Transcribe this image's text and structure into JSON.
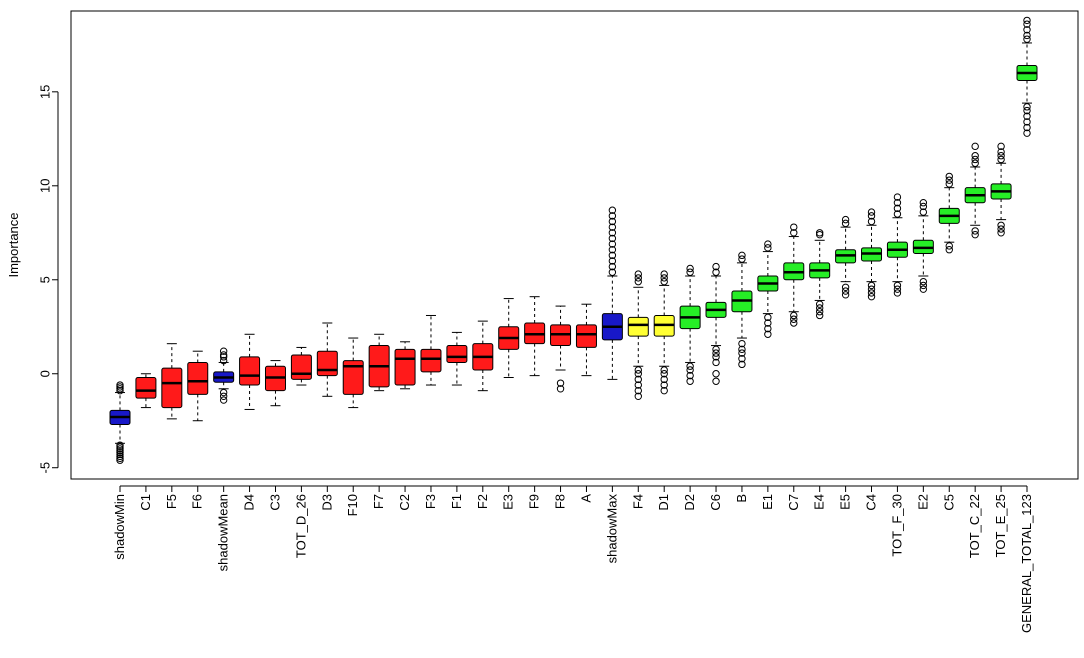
{
  "chart_data": {
    "type": "box",
    "ylabel": "Importance",
    "xlabel": "",
    "title": "",
    "ylim": [
      -5.6,
      19.3
    ],
    "yticks": [
      -5,
      0,
      5,
      10,
      15
    ],
    "ytick_labels": [
      "-5",
      "0",
      "5",
      "10",
      "15"
    ],
    "colors": {
      "blue": "#1818c8",
      "red": "#ff1a1a",
      "yellow": "#ffff33",
      "green": "#26ee26"
    },
    "boxes": [
      {
        "label": "shadowMin",
        "color": "blue",
        "whisker_low": -3.7,
        "q1": -2.7,
        "median": -2.3,
        "q3": -1.95,
        "whisker_high": -1.0,
        "outliers": [
          -4.6,
          -4.5,
          -4.4,
          -4.3,
          -4.2,
          -4.1,
          -4.0,
          -3.9,
          -3.8,
          -0.9,
          -0.8,
          -0.7,
          -0.6
        ]
      },
      {
        "label": "C1",
        "color": "red",
        "whisker_low": -1.8,
        "q1": -1.3,
        "median": -0.9,
        "q3": -0.2,
        "whisker_high": 0.0,
        "outliers": []
      },
      {
        "label": "F5",
        "color": "red",
        "whisker_low": -2.4,
        "q1": -1.8,
        "median": -0.5,
        "q3": 0.3,
        "whisker_high": 1.6,
        "outliers": []
      },
      {
        "label": "F6",
        "color": "red",
        "whisker_low": -2.5,
        "q1": -1.1,
        "median": -0.4,
        "q3": 0.6,
        "whisker_high": 1.2,
        "outliers": []
      },
      {
        "label": "shadowMean",
        "color": "blue",
        "whisker_low": -0.8,
        "q1": -0.45,
        "median": -0.2,
        "q3": 0.1,
        "whisker_high": 0.6,
        "outliers": [
          -1.4,
          -1.2,
          -1.0,
          0.7,
          0.9,
          1.0,
          1.2
        ]
      },
      {
        "label": "D4",
        "color": "red",
        "whisker_low": -1.9,
        "q1": -0.6,
        "median": -0.1,
        "q3": 0.9,
        "whisker_high": 2.1,
        "outliers": []
      },
      {
        "label": "C3",
        "color": "red",
        "whisker_low": -1.7,
        "q1": -0.9,
        "median": -0.2,
        "q3": 0.4,
        "whisker_high": 0.7,
        "outliers": []
      },
      {
        "label": "TOT_D_26",
        "color": "red",
        "whisker_low": -0.6,
        "q1": -0.3,
        "median": 0.0,
        "q3": 1.0,
        "whisker_high": 1.4,
        "outliers": []
      },
      {
        "label": "D3",
        "color": "red",
        "whisker_low": -1.2,
        "q1": -0.1,
        "median": 0.2,
        "q3": 1.2,
        "whisker_high": 2.7,
        "outliers": []
      },
      {
        "label": "F10",
        "color": "red",
        "whisker_low": -1.8,
        "q1": -1.1,
        "median": 0.4,
        "q3": 0.7,
        "whisker_high": 1.9,
        "outliers": []
      },
      {
        "label": "F7",
        "color": "red",
        "whisker_low": -0.9,
        "q1": -0.7,
        "median": 0.4,
        "q3": 1.5,
        "whisker_high": 2.1,
        "outliers": []
      },
      {
        "label": "C2",
        "color": "red",
        "whisker_low": -0.8,
        "q1": -0.6,
        "median": 0.8,
        "q3": 1.3,
        "whisker_high": 1.7,
        "outliers": []
      },
      {
        "label": "F3",
        "color": "red",
        "whisker_low": -0.6,
        "q1": 0.1,
        "median": 0.8,
        "q3": 1.3,
        "whisker_high": 3.1,
        "outliers": []
      },
      {
        "label": "F1",
        "color": "red",
        "whisker_low": -0.6,
        "q1": 0.6,
        "median": 0.9,
        "q3": 1.5,
        "whisker_high": 2.2,
        "outliers": []
      },
      {
        "label": "F2",
        "color": "red",
        "whisker_low": -0.9,
        "q1": 0.2,
        "median": 0.9,
        "q3": 1.6,
        "whisker_high": 2.8,
        "outliers": []
      },
      {
        "label": "E3",
        "color": "red",
        "whisker_low": -0.2,
        "q1": 1.3,
        "median": 1.9,
        "q3": 2.5,
        "whisker_high": 4.0,
        "outliers": []
      },
      {
        "label": "F9",
        "color": "red",
        "whisker_low": -0.1,
        "q1": 1.6,
        "median": 2.1,
        "q3": 2.7,
        "whisker_high": 4.1,
        "outliers": []
      },
      {
        "label": "F8",
        "color": "red",
        "whisker_low": 0.2,
        "q1": 1.5,
        "median": 2.1,
        "q3": 2.6,
        "whisker_high": 3.6,
        "outliers": [
          -0.5,
          -0.8
        ]
      },
      {
        "label": "A",
        "color": "red",
        "whisker_low": -0.1,
        "q1": 1.4,
        "median": 2.1,
        "q3": 2.6,
        "whisker_high": 3.7,
        "outliers": []
      },
      {
        "label": "shadowMax",
        "color": "blue",
        "whisker_low": -0.3,
        "q1": 1.8,
        "median": 2.5,
        "q3": 3.2,
        "whisker_high": 5.2,
        "outliers": [
          5.4,
          5.7,
          6.0,
          6.3,
          6.6,
          6.9,
          7.2,
          7.5,
          7.8,
          8.1,
          8.4,
          8.7
        ]
      },
      {
        "label": "F4",
        "color": "yellow",
        "whisker_low": 0.4,
        "q1": 2.0,
        "median": 2.6,
        "q3": 3.0,
        "whisker_high": 4.6,
        "outliers": [
          -1.2,
          -0.9,
          -0.6,
          -0.3,
          0.0,
          0.2,
          4.9,
          5.1,
          5.3
        ]
      },
      {
        "label": "D1",
        "color": "yellow",
        "whisker_low": 0.4,
        "q1": 2.0,
        "median": 2.6,
        "q3": 3.1,
        "whisker_high": 4.7,
        "outliers": [
          -0.9,
          -0.6,
          -0.3,
          0.0,
          0.2,
          4.9,
          5.1,
          5.3
        ]
      },
      {
        "label": "D2",
        "color": "green",
        "whisker_low": 0.6,
        "q1": 2.4,
        "median": 3.0,
        "q3": 3.6,
        "whisker_high": 5.2,
        "outliers": [
          -0.4,
          -0.1,
          0.2,
          0.4,
          5.4,
          5.6
        ]
      },
      {
        "label": "C6",
        "color": "green",
        "whisker_low": 1.5,
        "q1": 3.0,
        "median": 3.4,
        "q3": 3.8,
        "whisker_high": 5.2,
        "outliers": [
          -0.4,
          0.0,
          0.6,
          0.9,
          1.1,
          1.3,
          5.4,
          5.7
        ]
      },
      {
        "label": "B",
        "color": "green",
        "whisker_low": 1.9,
        "q1": 3.3,
        "median": 3.9,
        "q3": 4.4,
        "whisker_high": 5.9,
        "outliers": [
          0.5,
          0.8,
          1.1,
          1.3,
          1.6,
          6.1,
          6.3
        ]
      },
      {
        "label": "E1",
        "color": "green",
        "whisker_low": 3.2,
        "q1": 4.4,
        "median": 4.8,
        "q3": 5.2,
        "whisker_high": 6.5,
        "outliers": [
          2.1,
          2.4,
          2.7,
          3.0,
          6.7,
          6.9
        ]
      },
      {
        "label": "C7",
        "color": "green",
        "whisker_low": 3.3,
        "q1": 5.0,
        "median": 5.4,
        "q3": 5.9,
        "whisker_high": 7.3,
        "outliers": [
          2.7,
          2.9,
          3.1,
          7.5,
          7.8
        ]
      },
      {
        "label": "E4",
        "color": "green",
        "whisker_low": 3.9,
        "q1": 5.1,
        "median": 5.5,
        "q3": 5.9,
        "whisker_high": 7.1,
        "outliers": [
          3.1,
          3.3,
          3.5,
          3.7,
          7.4,
          7.5
        ]
      },
      {
        "label": "E5",
        "color": "green",
        "whisker_low": 4.9,
        "q1": 5.9,
        "median": 6.3,
        "q3": 6.6,
        "whisker_high": 7.8,
        "outliers": [
          4.2,
          4.4,
          4.6,
          8.0,
          8.2
        ]
      },
      {
        "label": "C4",
        "color": "green",
        "whisker_low": 4.9,
        "q1": 6.0,
        "median": 6.4,
        "q3": 6.7,
        "whisker_high": 7.9,
        "outliers": [
          4.1,
          4.3,
          4.5,
          4.7,
          8.1,
          8.4,
          8.6
        ]
      },
      {
        "label": "TOT_F_30",
        "color": "green",
        "whisker_low": 4.9,
        "q1": 6.2,
        "median": 6.6,
        "q3": 7.0,
        "whisker_high": 8.3,
        "outliers": [
          4.3,
          4.5,
          4.7,
          8.5,
          8.8,
          9.1,
          9.4
        ]
      },
      {
        "label": "E2",
        "color": "green",
        "whisker_low": 5.2,
        "q1": 6.4,
        "median": 6.7,
        "q3": 7.1,
        "whisker_high": 8.4,
        "outliers": [
          4.5,
          4.7,
          4.9,
          8.6,
          8.9,
          9.1
        ]
      },
      {
        "label": "C5",
        "color": "green",
        "whisker_low": 7.0,
        "q1": 8.0,
        "median": 8.4,
        "q3": 8.8,
        "whisker_high": 9.9,
        "outliers": [
          6.6,
          6.8,
          10.1,
          10.3,
          10.5
        ]
      },
      {
        "label": "TOT_C_22",
        "color": "green",
        "whisker_low": 7.9,
        "q1": 9.1,
        "median": 9.5,
        "q3": 9.9,
        "whisker_high": 11.0,
        "outliers": [
          7.4,
          7.6,
          11.2,
          11.4,
          11.6,
          12.1
        ]
      },
      {
        "label": "TOT_E_25",
        "color": "green",
        "whisker_low": 8.2,
        "q1": 9.3,
        "median": 9.7,
        "q3": 10.1,
        "whisker_high": 11.2,
        "outliers": [
          7.5,
          7.7,
          7.9,
          11.4,
          11.6,
          11.8,
          12.1
        ]
      },
      {
        "label": "GENERAL_TOTAL_123",
        "color": "green",
        "whisker_low": 14.4,
        "q1": 15.6,
        "median": 16.0,
        "q3": 16.4,
        "whisker_high": 17.6,
        "outliers": [
          12.8,
          13.1,
          13.4,
          13.7,
          14.0,
          14.2,
          17.8,
          18.0,
          18.3,
          18.6,
          18.8
        ]
      }
    ]
  }
}
